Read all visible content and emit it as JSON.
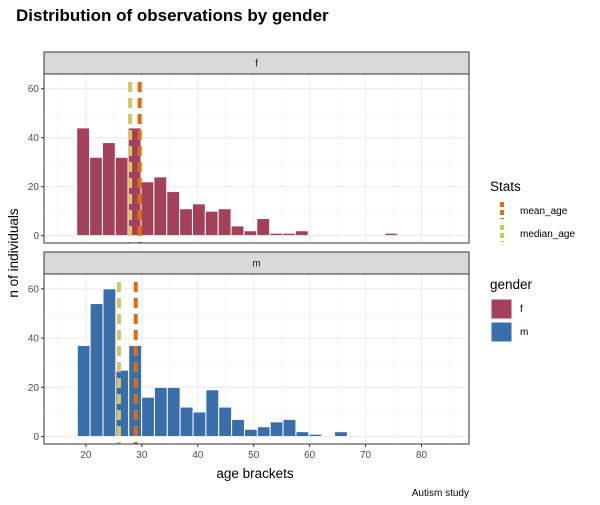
{
  "chart_data": {
    "type": "bar",
    "title": "Distribution of observations by gender",
    "xlabel": "age brackets",
    "ylabel": "n of individuals",
    "caption": "Autism study",
    "xlim": [
      12.5,
      88.5
    ],
    "ylim": [
      -3,
      66
    ],
    "x_ticks": [
      20,
      30,
      40,
      50,
      60,
      70,
      80
    ],
    "y_ticks": [
      0,
      20,
      40,
      60
    ],
    "bin_width": 2.3,
    "grid": true,
    "legend_position": "right",
    "colors": {
      "f": "#a3405a",
      "m": "#3a6eaa",
      "mean_age": "#e06c14",
      "median_age": "#d6c462"
    },
    "legends": [
      {
        "title": "Stats",
        "entries": [
          {
            "label": "mean_age",
            "color": "#e06c14"
          },
          {
            "label": "median_age",
            "color": "#d6c462"
          }
        ]
      },
      {
        "title": "gender",
        "entries": [
          {
            "label": "f",
            "color": "#a3405a"
          },
          {
            "label": "m",
            "color": "#3a6eaa"
          }
        ]
      }
    ],
    "panels": [
      {
        "label": "f",
        "color": "#a3405a",
        "x": [
          19.5,
          21.8,
          24.1,
          26.4,
          28.7,
          31.0,
          33.3,
          35.6,
          37.9,
          40.2,
          42.5,
          44.8,
          47.1,
          49.4,
          51.7,
          54.0,
          56.3,
          58.6,
          60.9,
          74.6
        ],
        "values": [
          44,
          32,
          38,
          32,
          44,
          22,
          24,
          18,
          11,
          13,
          10,
          11,
          4,
          2,
          7,
          1,
          1,
          2,
          0,
          1
        ],
        "mean_age": 29.6,
        "median_age": 27.9
      },
      {
        "label": "m",
        "color": "#3a6eaa",
        "x": [
          19.6,
          21.9,
          24.2,
          26.5,
          28.8,
          31.1,
          33.4,
          35.7,
          38.0,
          40.3,
          42.6,
          44.9,
          47.2,
          49.5,
          51.8,
          54.1,
          56.4,
          58.7,
          61.0,
          65.6
        ],
        "values": [
          37,
          54,
          60,
          27,
          37,
          16,
          20,
          20,
          12,
          10,
          19,
          12,
          7,
          3,
          4,
          6,
          7,
          2,
          1,
          2
        ],
        "mean_age": 28.9,
        "median_age": 25.9
      }
    ]
  }
}
